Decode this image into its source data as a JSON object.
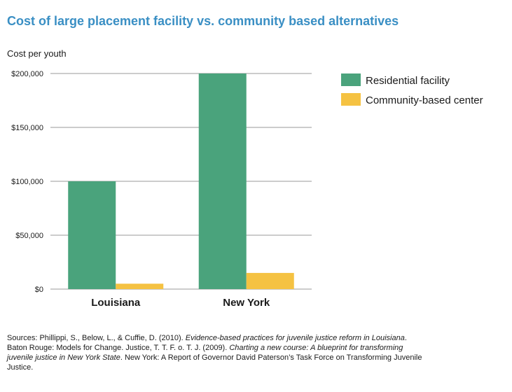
{
  "chart_data": {
    "type": "bar",
    "title": "Cost of large placement facility vs. community based alternatives",
    "ylabel": "Cost per youth",
    "xlabel": "",
    "categories": [
      "Louisiana",
      "New York"
    ],
    "series": [
      {
        "name": "Residential facility",
        "color": "#4aa37c",
        "values": [
          100000,
          200000
        ]
      },
      {
        "name": "Community-based center",
        "color": "#f5c242",
        "values": [
          5000,
          15000
        ]
      }
    ],
    "ylim": [
      0,
      200000
    ],
    "yticks": [
      {
        "value": 0,
        "label": "$0"
      },
      {
        "value": 50000,
        "label": "$50,000"
      },
      {
        "value": 100000,
        "label": "$100,000"
      },
      {
        "value": 150000,
        "label": "$150,000"
      },
      {
        "value": 200000,
        "label": "$200,000"
      }
    ],
    "grid": true,
    "legend_position": "top-right"
  },
  "sources": {
    "prefix": "Sources: Phillippi, S., Below, L., & Cuffie, D. (2010). ",
    "title1": "Evidence-based practices for juvenile justice reform in Louisiana",
    "middle": ". Baton Rouge: Models for Change. Justice, T. T. F. o. T. J. (2009). ",
    "title2": "Charting a new course: A blueprint for transforming juvenile justice in New York State",
    "suffix": ". New York: A Report of Governor David Paterson’s Task Force on Transforming Juvenile Justice."
  }
}
